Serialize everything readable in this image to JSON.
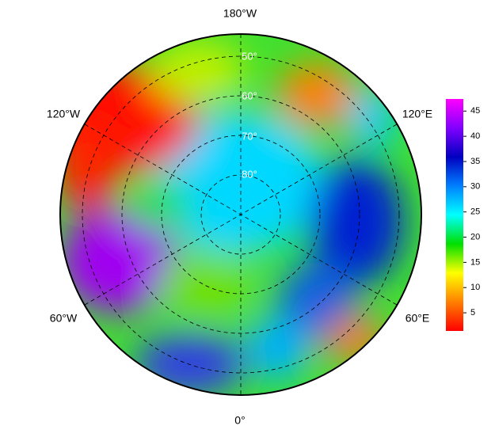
{
  "map": {
    "lon_labels": [
      "180°W",
      "120°W",
      "120°E",
      "60°W",
      "60°E",
      "0°"
    ],
    "lat_labels": [
      "50°",
      "60°",
      "70°",
      "80°"
    ],
    "colorbar": {
      "min": 1.4,
      "max": 47.4,
      "ticks": [
        5,
        10,
        15,
        20,
        25,
        30,
        35,
        40,
        45
      ],
      "colors": [
        "#ff0000",
        "#ff8000",
        "#ffff00",
        "#00e000",
        "#00ffff",
        "#0080ff",
        "#0000c0",
        "#8000ff",
        "#ff00ff"
      ]
    }
  }
}
